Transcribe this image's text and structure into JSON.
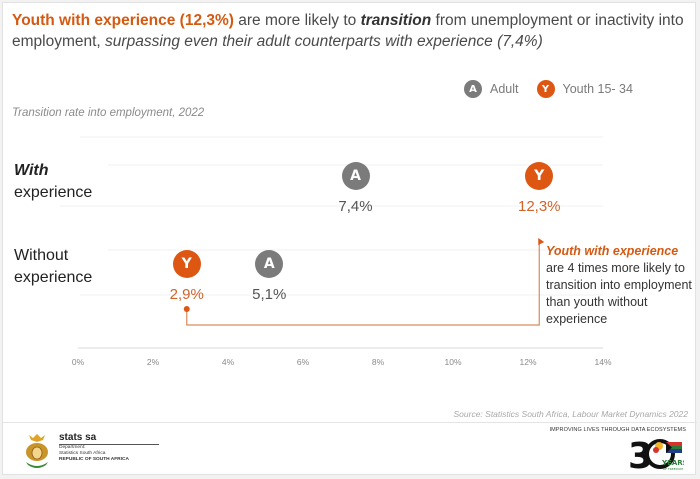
{
  "headline": {
    "orange_part": "Youth with experience (12,3%)",
    "part2": " are more likely to ",
    "bolditalic_part": "transition",
    "part3": " from unemployment or inactivity into employment, ",
    "italic_part": "surpassing even their adult counterparts with experience (7,4%)"
  },
  "legend": [
    {
      "badge": "A",
      "label": "Adult",
      "color": "#7b7b7b"
    },
    {
      "badge": "Y",
      "label": "Youth 15- 34",
      "color": "#dd5712"
    }
  ],
  "subtitle": "Transition rate into employment, 2022",
  "rows": [
    {
      "label_line1": "With",
      "label_line2": "experience"
    },
    {
      "label_line1": "Without",
      "label_line2": "experience"
    }
  ],
  "callout": {
    "em": "Youth with experience",
    "rest": " are 4 times more likely to transition into employment than youth without experience"
  },
  "source": "Source: Statistics South Africa, Labour Market Dynamics 2022",
  "footer": {
    "tagline": "IMPROVING LIVES THROUGH DATA ECOSYSTEMS",
    "org_name": "stats sa",
    "org_line1": "Department:",
    "org_line2": "Statistics South Africa",
    "org_line3": "REPUBLIC OF SOUTH AFRICA",
    "anniversary_number": "30",
    "anniversary_text": "YEARS",
    "anniversary_sub": "OF FREEDOM"
  },
  "chart_data": {
    "type": "scatter",
    "title": "Transition rate into employment, 2022",
    "xlabel": "",
    "ylabel": "",
    "xlim": [
      0,
      14
    ],
    "x_ticks": [
      "0%",
      "2%",
      "4%",
      "6%",
      "8%",
      "10%",
      "12%",
      "14%"
    ],
    "x_tick_values": [
      0,
      2,
      4,
      6,
      8,
      10,
      12,
      14
    ],
    "categories": [
      "With experience",
      "Without experience"
    ],
    "series": [
      {
        "name": "Adult",
        "badge": "A",
        "color": "#7b7b7b",
        "values": [
          7.4,
          5.1
        ],
        "labels": [
          "7,4%",
          "5,1%"
        ]
      },
      {
        "name": "Youth 15- 34",
        "badge": "Y",
        "color": "#dd5712",
        "values": [
          12.3,
          2.9
        ],
        "labels": [
          "12,3%",
          "2,9%"
        ]
      }
    ],
    "grid": true,
    "legend": "top-right",
    "annotation": "Youth with experience are 4 times more likely to transition into employment than youth without experience"
  }
}
